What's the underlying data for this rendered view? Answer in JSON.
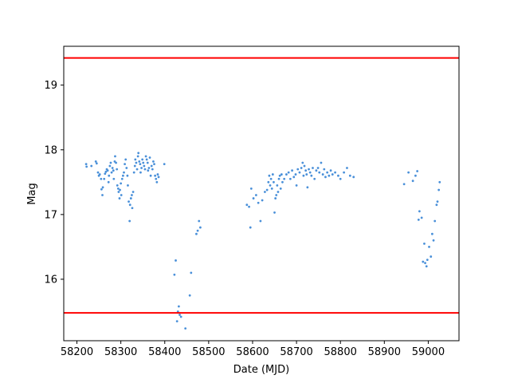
{
  "chart_data": {
    "type": "scatter",
    "xlabel": "Date (MJD)",
    "ylabel": "Mag",
    "xlim": [
      58170,
      59070
    ],
    "ylim": [
      15.05,
      19.6
    ],
    "x_ticks": [
      58200,
      58300,
      58400,
      58500,
      58600,
      58700,
      58800,
      58900,
      59000
    ],
    "y_ticks": [
      16,
      17,
      18,
      19
    ],
    "grid": false,
    "point_color": "#4a90d9",
    "reference_lines": [
      {
        "y": 19.42,
        "color": "#ff0000"
      },
      {
        "y": 15.48,
        "color": "#ff0000"
      }
    ],
    "series": [
      {
        "points": [
          [
            58221,
            17.78
          ],
          [
            58222,
            17.74
          ],
          [
            58233,
            17.75
          ],
          [
            58243,
            17.82
          ],
          [
            58245,
            17.79
          ],
          [
            58248,
            17.65
          ],
          [
            58250,
            17.6
          ],
          [
            58252,
            17.62
          ],
          [
            58255,
            17.55
          ],
          [
            58256,
            17.39
          ],
          [
            58258,
            17.3
          ],
          [
            58259,
            17.42
          ],
          [
            58262,
            17.55
          ],
          [
            58264,
            17.63
          ],
          [
            58266,
            17.66
          ],
          [
            58268,
            17.7
          ],
          [
            58270,
            17.68
          ],
          [
            58272,
            17.5
          ],
          [
            58273,
            17.6
          ],
          [
            58275,
            17.75
          ],
          [
            58277,
            17.8
          ],
          [
            58279,
            17.65
          ],
          [
            58281,
            17.72
          ],
          [
            58283,
            17.68
          ],
          [
            58284,
            17.55
          ],
          [
            58286,
            17.82
          ],
          [
            58287,
            17.9
          ],
          [
            58289,
            17.8
          ],
          [
            58291,
            17.7
          ],
          [
            58292,
            17.45
          ],
          [
            58294,
            17.4
          ],
          [
            58295,
            17.35
          ],
          [
            58297,
            17.25
          ],
          [
            58298,
            17.38
          ],
          [
            58300,
            17.48
          ],
          [
            58301,
            17.3
          ],
          [
            58303,
            17.55
          ],
          [
            58305,
            17.6
          ],
          [
            58307,
            17.65
          ],
          [
            58309,
            17.78
          ],
          [
            58311,
            17.85
          ],
          [
            58313,
            17.72
          ],
          [
            58315,
            17.6
          ],
          [
            58316,
            17.45
          ],
          [
            58318,
            17.2
          ],
          [
            58320,
            16.9
          ],
          [
            58321,
            17.15
          ],
          [
            58323,
            17.25
          ],
          [
            58325,
            17.3
          ],
          [
            58326,
            17.1
          ],
          [
            58328,
            17.35
          ],
          [
            58330,
            17.65
          ],
          [
            58332,
            17.75
          ],
          [
            58333,
            17.85
          ],
          [
            58335,
            17.8
          ],
          [
            58337,
            17.7
          ],
          [
            58339,
            17.9
          ],
          [
            58340,
            17.95
          ],
          [
            58342,
            17.82
          ],
          [
            58344,
            17.78
          ],
          [
            58345,
            17.65
          ],
          [
            58347,
            17.72
          ],
          [
            58349,
            17.85
          ],
          [
            58351,
            17.8
          ],
          [
            58353,
            17.75
          ],
          [
            58355,
            17.7
          ],
          [
            58357,
            17.9
          ],
          [
            58359,
            17.85
          ],
          [
            58361,
            17.8
          ],
          [
            58362,
            17.68
          ],
          [
            58364,
            17.72
          ],
          [
            58366,
            17.88
          ],
          [
            58368,
            17.6
          ],
          [
            58370,
            17.75
          ],
          [
            58372,
            17.7
          ],
          [
            58374,
            17.82
          ],
          [
            58376,
            17.78
          ],
          [
            58378,
            17.6
          ],
          [
            58380,
            17.55
          ],
          [
            58382,
            17.5
          ],
          [
            58384,
            17.62
          ],
          [
            58386,
            17.58
          ],
          [
            58399,
            17.78
          ],
          [
            58422,
            16.07
          ],
          [
            58425,
            16.29
          ],
          [
            58428,
            15.35
          ],
          [
            58430,
            15.5
          ],
          [
            58432,
            15.58
          ],
          [
            58434,
            15.45
          ],
          [
            58437,
            15.42
          ],
          [
            58447,
            15.24
          ],
          [
            58457,
            15.75
          ],
          [
            58460,
            16.1
          ],
          [
            58472,
            16.7
          ],
          [
            58475,
            16.75
          ],
          [
            58478,
            16.9
          ],
          [
            58481,
            16.8
          ],
          [
            58587,
            17.15
          ],
          [
            58592,
            17.12
          ],
          [
            58595,
            16.8
          ],
          [
            58597,
            17.4
          ],
          [
            58602,
            17.25
          ],
          [
            58608,
            17.3
          ],
          [
            58613,
            17.18
          ],
          [
            58618,
            16.9
          ],
          [
            58622,
            17.22
          ],
          [
            58628,
            17.35
          ],
          [
            58633,
            17.38
          ],
          [
            58636,
            17.5
          ],
          [
            58638,
            17.6
          ],
          [
            58640,
            17.45
          ],
          [
            58642,
            17.55
          ],
          [
            58644,
            17.4
          ],
          [
            58646,
            17.62
          ],
          [
            58648,
            17.5
          ],
          [
            58650,
            17.03
          ],
          [
            58652,
            17.25
          ],
          [
            58654,
            17.3
          ],
          [
            58656,
            17.45
          ],
          [
            58658,
            17.35
          ],
          [
            58660,
            17.55
          ],
          [
            58662,
            17.6
          ],
          [
            58664,
            17.4
          ],
          [
            58666,
            17.62
          ],
          [
            58668,
            17.5
          ],
          [
            58672,
            17.55
          ],
          [
            58677,
            17.62
          ],
          [
            58682,
            17.65
          ],
          [
            58686,
            17.55
          ],
          [
            58690,
            17.68
          ],
          [
            58694,
            17.58
          ],
          [
            58698,
            17.62
          ],
          [
            58700,
            17.45
          ],
          [
            58703,
            17.7
          ],
          [
            58707,
            17.65
          ],
          [
            58711,
            17.72
          ],
          [
            58714,
            17.8
          ],
          [
            58716,
            17.6
          ],
          [
            58718,
            17.75
          ],
          [
            58721,
            17.68
          ],
          [
            58723,
            17.62
          ],
          [
            58725,
            17.42
          ],
          [
            58728,
            17.7
          ],
          [
            58731,
            17.65
          ],
          [
            58734,
            17.6
          ],
          [
            58737,
            17.72
          ],
          [
            58741,
            17.55
          ],
          [
            58745,
            17.68
          ],
          [
            58749,
            17.72
          ],
          [
            58752,
            17.65
          ],
          [
            58756,
            17.8
          ],
          [
            58760,
            17.62
          ],
          [
            58763,
            17.7
          ],
          [
            58766,
            17.58
          ],
          [
            58770,
            17.65
          ],
          [
            58774,
            17.6
          ],
          [
            58778,
            17.68
          ],
          [
            58782,
            17.62
          ],
          [
            58788,
            17.65
          ],
          [
            58795,
            17.6
          ],
          [
            58800,
            17.55
          ],
          [
            58808,
            17.65
          ],
          [
            58815,
            17.72
          ],
          [
            58822,
            17.6
          ],
          [
            58830,
            17.58
          ],
          [
            58945,
            17.47
          ],
          [
            58955,
            17.65
          ],
          [
            58965,
            17.52
          ],
          [
            58971,
            17.6
          ],
          [
            58975,
            17.67
          ],
          [
            58978,
            16.92
          ],
          [
            58980,
            17.05
          ],
          [
            58985,
            16.95
          ],
          [
            58988,
            16.27
          ],
          [
            58991,
            16.55
          ],
          [
            58993,
            16.25
          ],
          [
            58996,
            16.2
          ],
          [
            58998,
            16.3
          ],
          [
            59002,
            16.5
          ],
          [
            59006,
            16.35
          ],
          [
            59009,
            16.7
          ],
          [
            59012,
            16.6
          ],
          [
            59015,
            16.9
          ],
          [
            59019,
            17.15
          ],
          [
            59021,
            17.2
          ],
          [
            59024,
            17.38
          ],
          [
            59026,
            17.5
          ]
        ]
      }
    ]
  }
}
